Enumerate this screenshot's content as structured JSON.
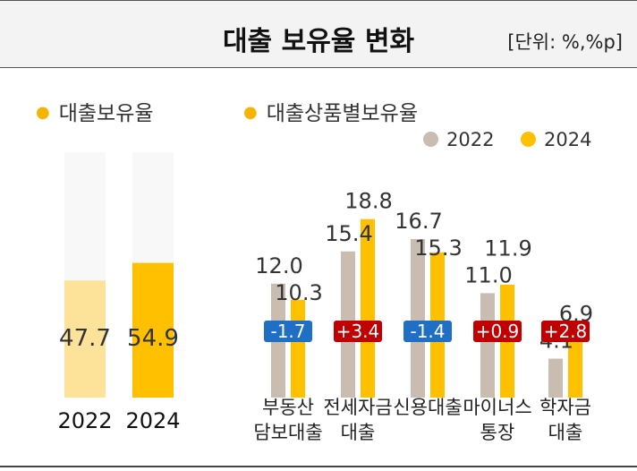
{
  "header": {
    "title": "대출 보유율 변화",
    "unit": "[단위: %,%p]"
  },
  "left_section": {
    "title": "대출보유율"
  },
  "right_section": {
    "title": "대출상품별보유율"
  },
  "legend": [
    {
      "label": "2022",
      "color": "#c8bdb0"
    },
    {
      "label": "2024",
      "color": "#ffc000"
    }
  ],
  "chart_data": [
    {
      "type": "bar",
      "title": "대출보유율",
      "categories": [
        "2022",
        "2024"
      ],
      "values": [
        47.7,
        54.9
      ],
      "colors": [
        "#fde39a",
        "#ffc000"
      ],
      "ylim": [
        0,
        100
      ]
    },
    {
      "type": "bar",
      "title": "대출상품별보유율",
      "categories": [
        [
          "부동산",
          "담보대출"
        ],
        [
          "전세자금",
          "대출"
        ],
        [
          "신용대출"
        ],
        [
          "마이너스",
          "통장"
        ],
        [
          "학자금",
          "대출"
        ]
      ],
      "series": [
        {
          "name": "2022",
          "values": [
            12.0,
            15.4,
            16.7,
            11.0,
            4.1
          ],
          "color": "#c8bdb0"
        },
        {
          "name": "2024",
          "values": [
            10.3,
            18.8,
            15.3,
            11.9,
            6.9
          ],
          "color": "#ffc000"
        }
      ],
      "changes": [
        "-1.7",
        "+3.4",
        "-1.4",
        "+0.9",
        "+2.8"
      ],
      "change_colors": {
        "negative": "#1f6fc5",
        "positive": "#c00000"
      }
    }
  ]
}
